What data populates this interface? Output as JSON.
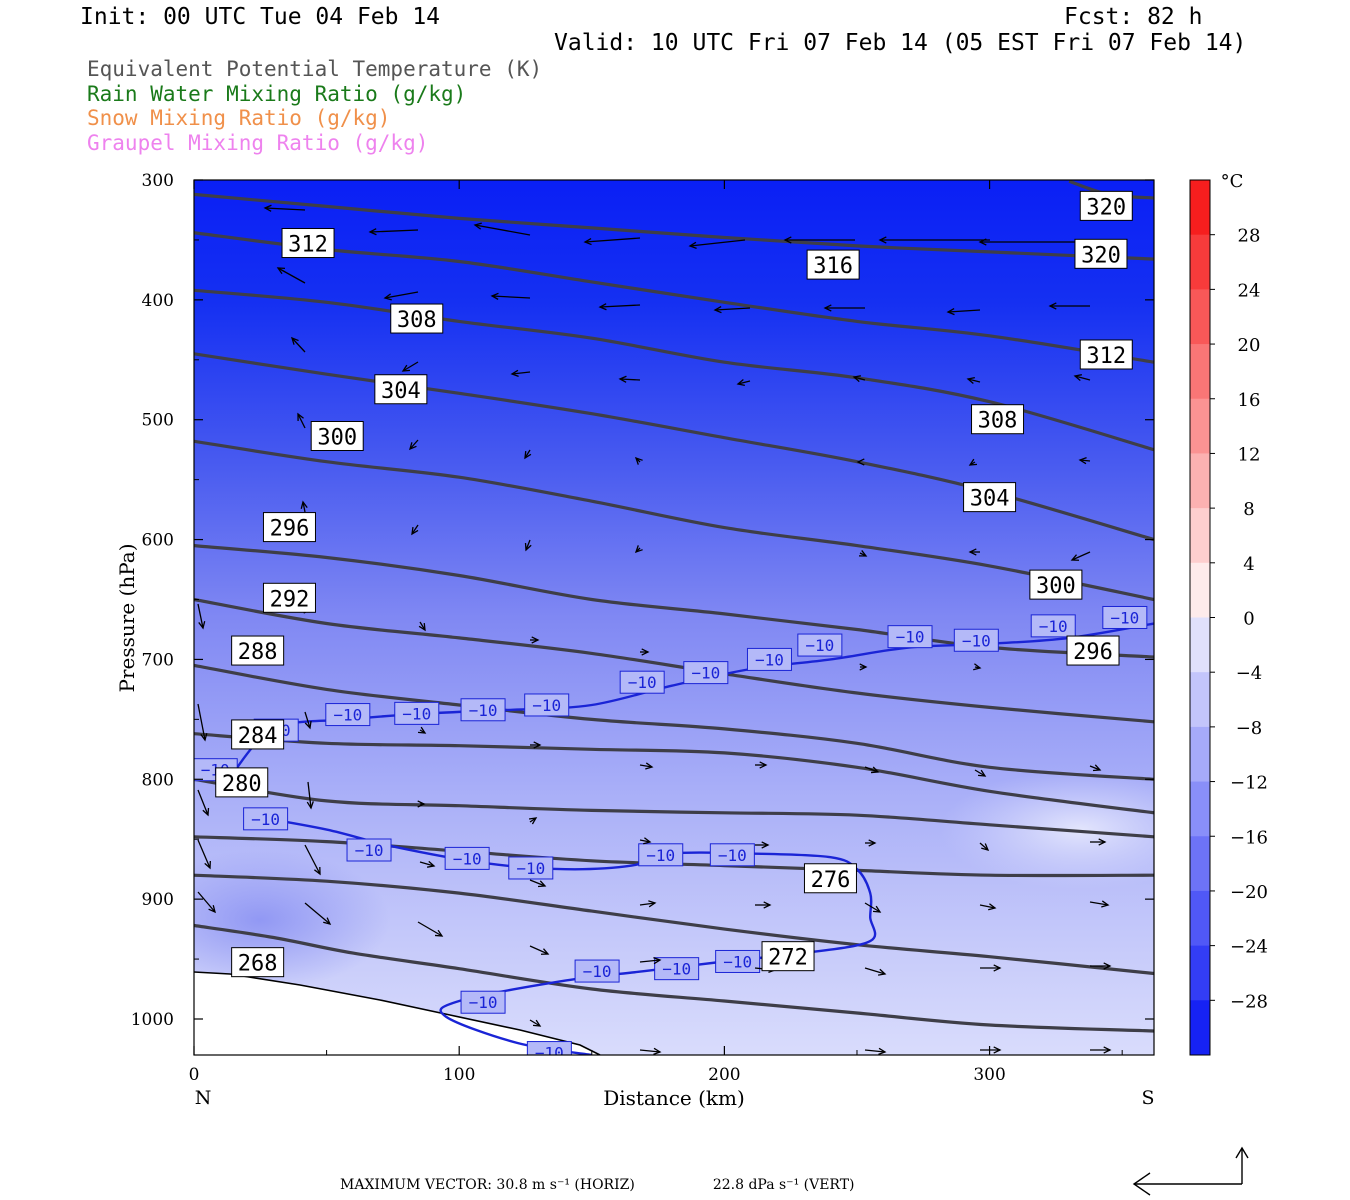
{
  "header": {
    "init": "Init: 00 UTC Tue 04 Feb 14",
    "fcst": "Fcst:   82 h",
    "valid": "Valid: 10 UTC Fri 07 Feb 14 (05 EST Fri 07 Feb 14)"
  },
  "fields": [
    {
      "label": "Equivalent Potential Temperature (K)",
      "color": "#555555"
    },
    {
      "label": "Rain Water Mixing Ratio (g/kg)",
      "color": "#1a7a1a"
    },
    {
      "label": "Snow Mixing Ratio (g/kg)",
      "color": "#f0904a"
    },
    {
      "label": "Graupel Mixing Ratio (g/kg)",
      "color": "#ee82ee"
    }
  ],
  "chart_data": {
    "type": "contour",
    "xlabel": "Distance (km)",
    "ylabel": "Pressure (hPa)",
    "xlim": [
      0,
      362
    ],
    "ylim": [
      1030,
      300
    ],
    "x_ticks": [
      0,
      100,
      200,
      300
    ],
    "y_ticks": [
      300,
      400,
      500,
      600,
      700,
      800,
      900,
      1000
    ],
    "x_end_labels": {
      "left": "N",
      "right": "S"
    },
    "colorbar": {
      "unit": "°C",
      "min": -32,
      "max": 32,
      "step": 4,
      "tick_labels": [
        28,
        24,
        20,
        16,
        12,
        8,
        4,
        0,
        -4,
        -8,
        -12,
        -16,
        -20,
        -24,
        -28
      ]
    },
    "theta_e_contours": [
      {
        "level": 268,
        "label": "268",
        "points": [
          [
            0,
            922
          ],
          [
            30,
            932
          ],
          [
            60,
            945
          ],
          [
            100,
            958
          ],
          [
            150,
            975
          ],
          [
            200,
            985
          ],
          [
            250,
            995
          ],
          [
            300,
            1005
          ],
          [
            362,
            1010
          ]
        ],
        "labels": [
          [
            24,
            953
          ]
        ]
      },
      {
        "level": 272,
        "label": "272",
        "points": [
          [
            0,
            880
          ],
          [
            50,
            885
          ],
          [
            100,
            895
          ],
          [
            150,
            910
          ],
          [
            200,
            925
          ],
          [
            250,
            938
          ],
          [
            300,
            948
          ],
          [
            362,
            962
          ]
        ],
        "labels": [
          [
            224,
            948
          ]
        ]
      },
      {
        "level": 276,
        "label": "276",
        "points": [
          [
            0,
            848
          ],
          [
            50,
            852
          ],
          [
            100,
            860
          ],
          [
            150,
            868
          ],
          [
            200,
            872
          ],
          [
            250,
            876
          ],
          [
            300,
            880
          ],
          [
            362,
            880
          ]
        ],
        "labels": [
          [
            240,
            883
          ]
        ]
      },
      {
        "level": 280,
        "label": "280",
        "points": [
          [
            0,
            800
          ],
          [
            50,
            818
          ],
          [
            100,
            822
          ],
          [
            150,
            826
          ],
          [
            200,
            828
          ],
          [
            250,
            830
          ],
          [
            300,
            838
          ],
          [
            362,
            848
          ]
        ],
        "labels": [
          [
            18,
            803
          ]
        ]
      },
      {
        "level": 284,
        "label": "284",
        "points": [
          [
            0,
            762
          ],
          [
            50,
            770
          ],
          [
            100,
            772
          ],
          [
            150,
            775
          ],
          [
            200,
            778
          ],
          [
            250,
            790
          ],
          [
            300,
            810
          ],
          [
            362,
            828
          ]
        ],
        "labels": [
          [
            24,
            763
          ]
        ]
      },
      {
        "level": 288,
        "label": "288",
        "points": [
          [
            0,
            705
          ],
          [
            50,
            725
          ],
          [
            100,
            738
          ],
          [
            150,
            750
          ],
          [
            200,
            758
          ],
          [
            250,
            770
          ],
          [
            300,
            790
          ],
          [
            362,
            800
          ]
        ],
        "labels": [
          [
            24,
            693
          ]
        ]
      },
      {
        "level": 292,
        "label": "292",
        "points": [
          [
            0,
            650
          ],
          [
            50,
            670
          ],
          [
            100,
            682
          ],
          [
            150,
            695
          ],
          [
            200,
            712
          ],
          [
            250,
            728
          ],
          [
            300,
            740
          ],
          [
            362,
            752
          ]
        ],
        "labels": [
          [
            36,
            649
          ]
        ]
      },
      {
        "level": 296,
        "label": "296",
        "points": [
          [
            0,
            605
          ],
          [
            50,
            615
          ],
          [
            100,
            630
          ],
          [
            150,
            650
          ],
          [
            200,
            662
          ],
          [
            250,
            675
          ],
          [
            300,
            690
          ],
          [
            362,
            698
          ]
        ],
        "labels": [
          [
            36,
            590
          ],
          [
            339,
            693
          ]
        ]
      },
      {
        "level": 300,
        "label": "300",
        "points": [
          [
            0,
            518
          ],
          [
            50,
            535
          ],
          [
            100,
            548
          ],
          [
            150,
            568
          ],
          [
            200,
            590
          ],
          [
            250,
            605
          ],
          [
            300,
            622
          ],
          [
            362,
            650
          ]
        ],
        "labels": [
          [
            54,
            514
          ],
          [
            325,
            638
          ]
        ]
      },
      {
        "level": 304,
        "label": "304",
        "points": [
          [
            0,
            445
          ],
          [
            50,
            462
          ],
          [
            100,
            478
          ],
          [
            150,
            495
          ],
          [
            200,
            515
          ],
          [
            250,
            535
          ],
          [
            300,
            560
          ],
          [
            362,
            600
          ]
        ],
        "labels": [
          [
            78,
            475
          ],
          [
            300,
            565
          ]
        ]
      },
      {
        "level": 308,
        "label": "308",
        "points": [
          [
            0,
            392
          ],
          [
            50,
            402
          ],
          [
            100,
            418
          ],
          [
            150,
            432
          ],
          [
            200,
            452
          ],
          [
            250,
            465
          ],
          [
            300,
            485
          ],
          [
            362,
            525
          ]
        ],
        "labels": [
          [
            84,
            416
          ],
          [
            303,
            500
          ]
        ]
      },
      {
        "level": 312,
        "label": "312",
        "points": [
          [
            0,
            344
          ],
          [
            50,
            358
          ],
          [
            100,
            368
          ],
          [
            150,
            385
          ],
          [
            200,
            402
          ],
          [
            250,
            418
          ],
          [
            300,
            430
          ],
          [
            362,
            452
          ]
        ],
        "labels": [
          [
            43,
            353
          ],
          [
            344,
            446
          ]
        ]
      },
      {
        "level": 316,
        "label": "316",
        "points": [
          [
            0,
            312
          ],
          [
            50,
            322
          ],
          [
            100,
            332
          ],
          [
            150,
            340
          ],
          [
            200,
            348
          ],
          [
            250,
            355
          ],
          [
            300,
            360
          ],
          [
            362,
            366
          ]
        ],
        "labels": [
          [
            241,
            371
          ]
        ]
      },
      {
        "level": 320,
        "label": "320",
        "points": [
          [
            330,
            301
          ],
          [
            345,
            312
          ],
          [
            362,
            315
          ]
        ],
        "labels": [
          [
            344,
            322
          ],
          [
            342,
            362
          ]
        ]
      }
    ],
    "minus10_contour": {
      "label": "−10",
      "upper": [
        [
          13,
          800
        ],
        [
          30,
          758
        ],
        [
          58,
          750
        ],
        [
          88,
          745
        ],
        [
          120,
          742
        ],
        [
          150,
          738
        ],
        [
          180,
          722
        ],
        [
          210,
          708
        ],
        [
          240,
          700
        ],
        [
          270,
          690
        ],
        [
          300,
          687
        ],
        [
          330,
          682
        ],
        [
          362,
          670
        ]
      ],
      "lower": [
        [
          20,
          830
        ],
        [
          50,
          842
        ],
        [
          75,
          856
        ],
        [
          110,
          870
        ],
        [
          140,
          875
        ],
        [
          165,
          872
        ],
        [
          180,
          862
        ],
        [
          210,
          862
        ],
        [
          240,
          865
        ],
        [
          250,
          875
        ],
        [
          255,
          895
        ],
        [
          255,
          915
        ],
        [
          255,
          935
        ],
        [
          230,
          945
        ],
        [
          200,
          952
        ],
        [
          170,
          960
        ],
        [
          140,
          968
        ],
        [
          100,
          985
        ],
        [
          95,
          998
        ],
        [
          122,
          1020
        ],
        [
          150,
          1030
        ]
      ],
      "labels": [
        [
          8,
          792
        ],
        [
          31,
          759
        ],
        [
          58,
          746
        ],
        [
          84,
          745
        ],
        [
          109,
          742
        ],
        [
          133,
          738
        ],
        [
          169,
          719
        ],
        [
          193,
          711
        ],
        [
          217,
          700
        ],
        [
          236,
          688
        ],
        [
          270,
          681
        ],
        [
          295,
          684
        ],
        [
          324,
          672
        ],
        [
          351,
          665
        ],
        [
          27,
          833
        ],
        [
          66,
          859
        ],
        [
          103,
          866
        ],
        [
          127,
          874
        ],
        [
          176,
          863
        ],
        [
          203,
          863
        ],
        [
          109,
          986
        ],
        [
          134,
          1028
        ],
        [
          152,
          960
        ],
        [
          182,
          958
        ],
        [
          205,
          952
        ]
      ]
    },
    "max_vector": {
      "horizontal": "MAXIMUM VECTOR:  30.8 m s⁻¹ (HORIZ)",
      "vertical": "22.8 dPa s⁻¹ (VERT)"
    }
  }
}
